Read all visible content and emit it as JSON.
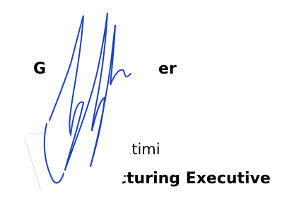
{
  "fragments": [
    "G",
    "er",
    "netimi",
    "cturing Executive"
  ]
}
